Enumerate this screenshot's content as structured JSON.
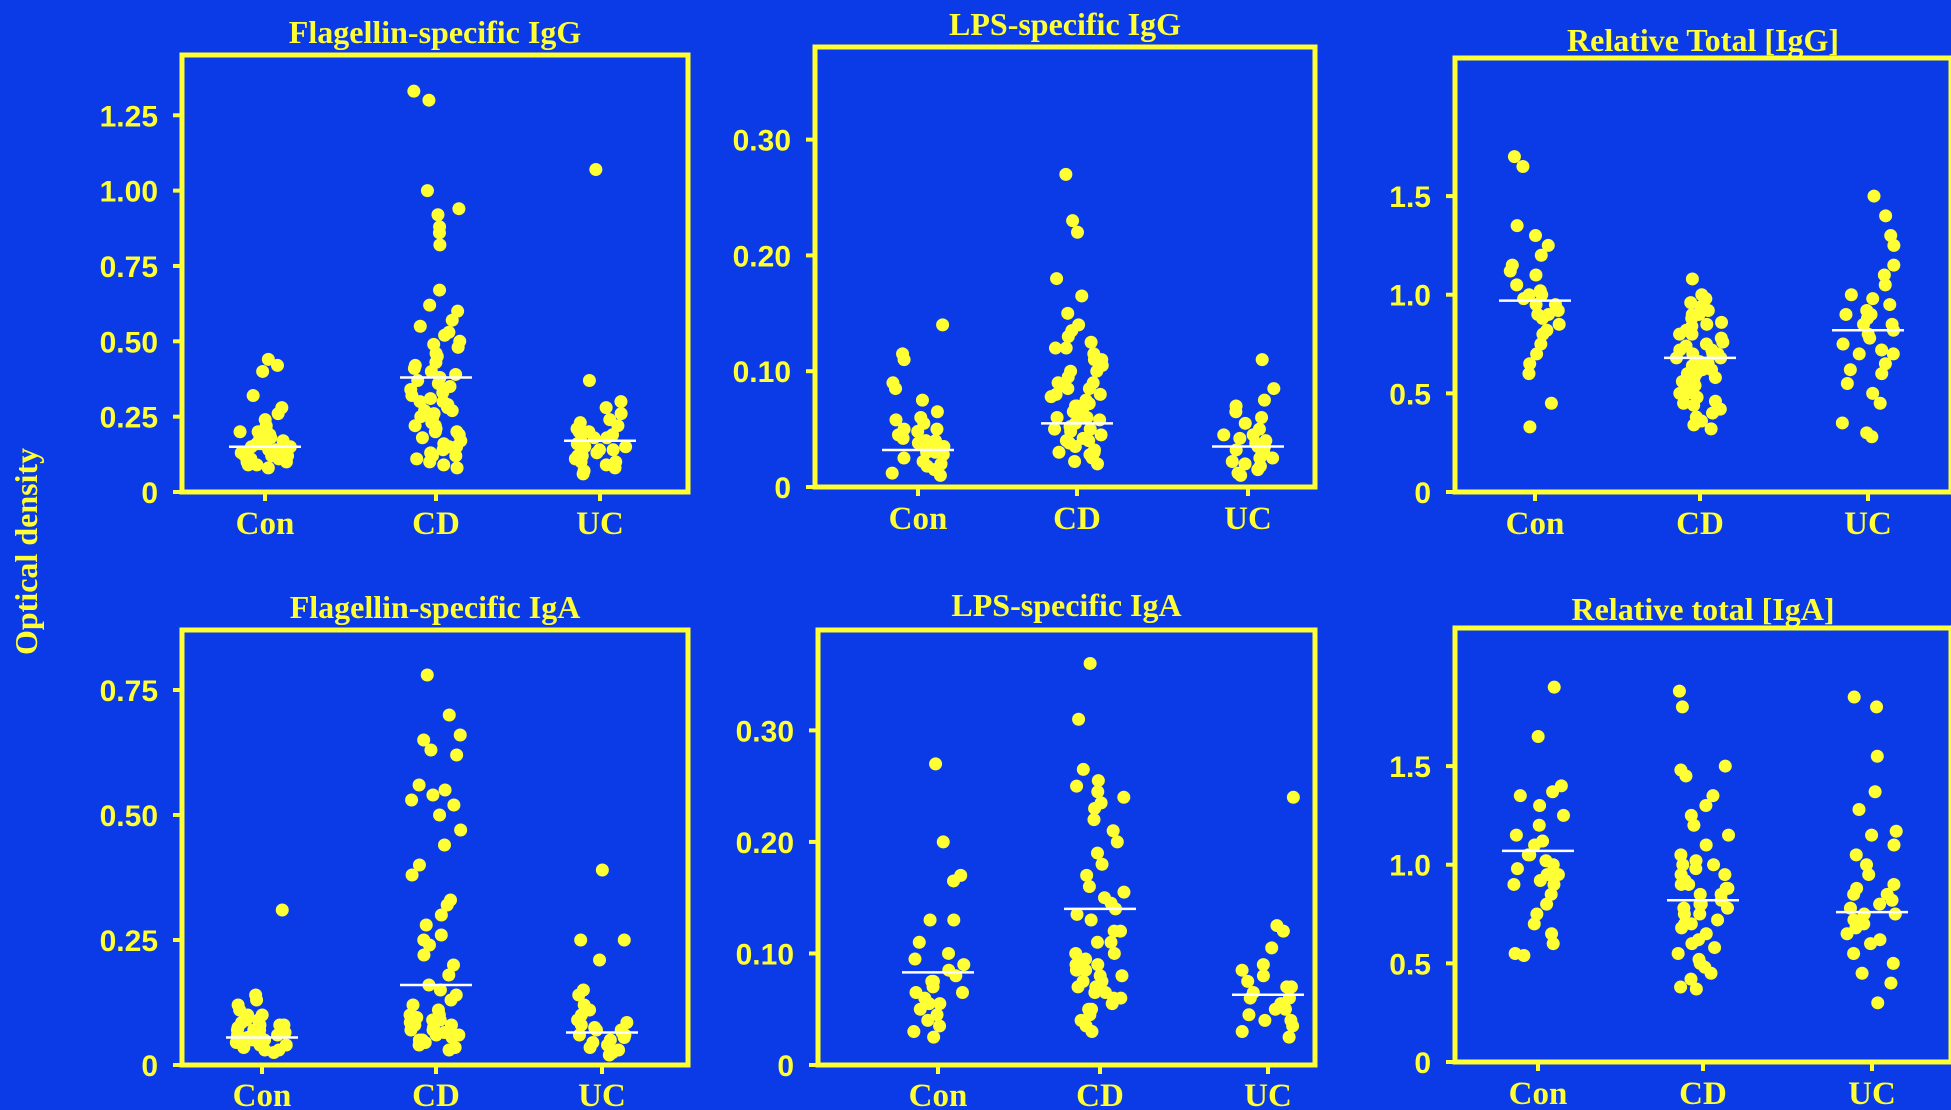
{
  "ylabel": "Optical density",
  "colors": {
    "background": "#0a3be6",
    "accent": "#ffff33",
    "median": "#ffffff"
  },
  "chart_data": [
    {
      "type": "scatter",
      "title": "Flagellin-specific IgG",
      "categories": [
        "Con",
        "CD",
        "UC"
      ],
      "yticks": [
        "0",
        "0.25",
        "0.50",
        "0.75",
        "1.00",
        "1.25"
      ],
      "ylim": [
        0,
        1.45
      ],
      "series": [
        {
          "category": "Con",
          "median": 0.15,
          "values": [
            0.42,
            0.44,
            0.4,
            0.32,
            0.28,
            0.26,
            0.24,
            0.22,
            0.21,
            0.2,
            0.19,
            0.18,
            0.18,
            0.17,
            0.16,
            0.16,
            0.15,
            0.15,
            0.14,
            0.14,
            0.13,
            0.13,
            0.12,
            0.12,
            0.11,
            0.11,
            0.1,
            0.1,
            0.09,
            0.09,
            0.08,
            0.2,
            0.17,
            0.14,
            0.12
          ]
        },
        {
          "category": "CD",
          "median": 0.38,
          "values": [
            1.33,
            1.3,
            1.0,
            0.94,
            0.92,
            0.88,
            0.86,
            0.82,
            0.67,
            0.62,
            0.6,
            0.57,
            0.55,
            0.53,
            0.52,
            0.5,
            0.49,
            0.48,
            0.46,
            0.45,
            0.43,
            0.42,
            0.41,
            0.4,
            0.39,
            0.38,
            0.37,
            0.36,
            0.35,
            0.34,
            0.33,
            0.32,
            0.31,
            0.3,
            0.29,
            0.28,
            0.27,
            0.26,
            0.25,
            0.24,
            0.23,
            0.22,
            0.21,
            0.2,
            0.19,
            0.18,
            0.17,
            0.16,
            0.15,
            0.14,
            0.13,
            0.12,
            0.11,
            0.1,
            0.09,
            0.08,
            0.3,
            0.25,
            0.2,
            0.15,
            0.12,
            0.22,
            0.27
          ]
        },
        {
          "category": "UC",
          "median": 0.17,
          "values": [
            1.07,
            0.37,
            0.3,
            0.28,
            0.26,
            0.24,
            0.23,
            0.22,
            0.21,
            0.2,
            0.19,
            0.18,
            0.17,
            0.16,
            0.15,
            0.14,
            0.13,
            0.12,
            0.11,
            0.1,
            0.09,
            0.08,
            0.07,
            0.06,
            0.2,
            0.15,
            0.12,
            0.1,
            0.18,
            0.14
          ]
        }
      ]
    },
    {
      "type": "scatter",
      "title": "LPS-specific IgG",
      "categories": [
        "Con",
        "CD",
        "UC"
      ],
      "yticks": [
        "0",
        "0.10",
        "0.20",
        "0.30"
      ],
      "ylim": [
        0,
        0.38
      ],
      "series": [
        {
          "category": "Con",
          "median": 0.032,
          "values": [
            0.14,
            0.115,
            0.11,
            0.09,
            0.085,
            0.075,
            0.065,
            0.06,
            0.058,
            0.055,
            0.05,
            0.048,
            0.045,
            0.042,
            0.04,
            0.038,
            0.035,
            0.032,
            0.03,
            0.028,
            0.025,
            0.022,
            0.02,
            0.018,
            0.015,
            0.012,
            0.01,
            0.05,
            0.04,
            0.03
          ]
        },
        {
          "category": "CD",
          "median": 0.055,
          "values": [
            0.27,
            0.23,
            0.22,
            0.18,
            0.165,
            0.15,
            0.14,
            0.135,
            0.13,
            0.125,
            0.12,
            0.115,
            0.11,
            0.105,
            0.1,
            0.095,
            0.09,
            0.088,
            0.085,
            0.08,
            0.078,
            0.075,
            0.072,
            0.07,
            0.068,
            0.065,
            0.062,
            0.06,
            0.058,
            0.055,
            0.052,
            0.05,
            0.048,
            0.045,
            0.042,
            0.04,
            0.038,
            0.035,
            0.032,
            0.03,
            0.028,
            0.025,
            0.022,
            0.02,
            0.1,
            0.09,
            0.08,
            0.07,
            0.06,
            0.05,
            0.04,
            0.03,
            0.11,
            0.12,
            0.085,
            0.065
          ]
        },
        {
          "category": "UC",
          "median": 0.035,
          "values": [
            0.11,
            0.085,
            0.075,
            0.07,
            0.065,
            0.06,
            0.055,
            0.05,
            0.045,
            0.042,
            0.04,
            0.038,
            0.035,
            0.032,
            0.03,
            0.028,
            0.025,
            0.022,
            0.02,
            0.018,
            0.015,
            0.012,
            0.01,
            0.045,
            0.035,
            0.025
          ]
        }
      ]
    },
    {
      "type": "scatter",
      "title": "Relative Total [IgG]",
      "categories": [
        "Con",
        "CD",
        "UC"
      ],
      "yticks": [
        "0",
        "0.5",
        "1.0",
        "1.5"
      ],
      "ylim": [
        0,
        2.2
      ],
      "series": [
        {
          "category": "Con",
          "median": 0.97,
          "values": [
            1.7,
            1.65,
            1.35,
            1.3,
            1.25,
            1.2,
            1.15,
            1.12,
            1.1,
            1.05,
            1.02,
            1.0,
            0.98,
            0.95,
            0.92,
            0.9,
            0.88,
            0.85,
            0.82,
            0.8,
            0.75,
            0.7,
            0.65,
            0.6,
            0.45,
            0.33,
            0.95,
            0.9,
            1.0
          ]
        },
        {
          "category": "CD",
          "median": 0.68,
          "values": [
            1.08,
            1.0,
            0.98,
            0.96,
            0.94,
            0.92,
            0.9,
            0.88,
            0.86,
            0.84,
            0.82,
            0.8,
            0.78,
            0.76,
            0.74,
            0.72,
            0.7,
            0.68,
            0.66,
            0.64,
            0.62,
            0.6,
            0.58,
            0.56,
            0.54,
            0.52,
            0.5,
            0.48,
            0.46,
            0.44,
            0.42,
            0.4,
            0.38,
            0.36,
            0.34,
            0.32,
            0.9,
            0.85,
            0.8,
            0.75,
            0.7,
            0.65,
            0.6,
            0.55,
            0.5,
            0.45,
            0.72,
            0.68,
            0.64,
            0.58,
            0.62,
            0.66,
            0.7
          ]
        },
        {
          "category": "UC",
          "median": 0.82,
          "values": [
            1.5,
            1.4,
            1.3,
            1.25,
            1.15,
            1.1,
            1.05,
            1.0,
            0.98,
            0.95,
            0.92,
            0.9,
            0.88,
            0.85,
            0.82,
            0.8,
            0.78,
            0.75,
            0.72,
            0.7,
            0.65,
            0.6,
            0.55,
            0.5,
            0.45,
            0.35,
            0.3,
            0.28,
            0.85,
            0.9,
            0.62,
            0.7
          ]
        }
      ]
    },
    {
      "type": "scatter",
      "title": "Flagellin-specific IgA",
      "categories": [
        "Con",
        "CD",
        "UC"
      ],
      "yticks": [
        "0",
        "0.25",
        "0.50",
        "0.75"
      ],
      "ylim": [
        0,
        0.87
      ],
      "series": [
        {
          "category": "Con",
          "median": 0.055,
          "values": [
            0.31,
            0.14,
            0.13,
            0.12,
            0.11,
            0.1,
            0.1,
            0.09,
            0.09,
            0.085,
            0.08,
            0.08,
            0.075,
            0.07,
            0.07,
            0.065,
            0.06,
            0.06,
            0.055,
            0.05,
            0.05,
            0.045,
            0.04,
            0.04,
            0.035,
            0.03,
            0.03,
            0.025,
            0.07,
            0.06,
            0.08,
            0.05
          ]
        },
        {
          "category": "CD",
          "median": 0.16,
          "values": [
            0.78,
            0.7,
            0.66,
            0.65,
            0.63,
            0.62,
            0.56,
            0.55,
            0.54,
            0.53,
            0.52,
            0.5,
            0.47,
            0.44,
            0.4,
            0.38,
            0.33,
            0.32,
            0.3,
            0.28,
            0.26,
            0.25,
            0.24,
            0.22,
            0.2,
            0.18,
            0.16,
            0.15,
            0.14,
            0.13,
            0.12,
            0.11,
            0.1,
            0.095,
            0.09,
            0.085,
            0.08,
            0.075,
            0.07,
            0.065,
            0.06,
            0.055,
            0.05,
            0.045,
            0.04,
            0.035,
            0.03,
            0.1,
            0.08,
            0.06,
            0.07,
            0.09,
            0.05
          ]
        },
        {
          "category": "UC",
          "median": 0.065,
          "values": [
            0.39,
            0.25,
            0.25,
            0.21,
            0.15,
            0.14,
            0.12,
            0.11,
            0.1,
            0.09,
            0.085,
            0.08,
            0.075,
            0.07,
            0.065,
            0.06,
            0.055,
            0.05,
            0.045,
            0.04,
            0.035,
            0.03,
            0.025,
            0.02,
            0.06,
            0.07
          ]
        }
      ]
    },
    {
      "type": "scatter",
      "title": "LPS-specific IgA",
      "categories": [
        "Con",
        "CD",
        "UC"
      ],
      "yticks": [
        "0",
        "0.10",
        "0.20",
        "0.30"
      ],
      "ylim": [
        0,
        0.39
      ],
      "series": [
        {
          "category": "Con",
          "median": 0.083,
          "values": [
            0.27,
            0.2,
            0.17,
            0.165,
            0.13,
            0.13,
            0.11,
            0.1,
            0.095,
            0.09,
            0.085,
            0.08,
            0.075,
            0.07,
            0.065,
            0.06,
            0.055,
            0.05,
            0.045,
            0.04,
            0.035,
            0.03,
            0.025,
            0.075,
            0.065,
            0.055
          ]
        },
        {
          "category": "CD",
          "median": 0.14,
          "values": [
            0.36,
            0.31,
            0.265,
            0.255,
            0.25,
            0.245,
            0.24,
            0.235,
            0.23,
            0.22,
            0.21,
            0.2,
            0.19,
            0.18,
            0.17,
            0.16,
            0.155,
            0.15,
            0.145,
            0.14,
            0.135,
            0.13,
            0.12,
            0.11,
            0.1,
            0.095,
            0.09,
            0.085,
            0.08,
            0.075,
            0.07,
            0.065,
            0.06,
            0.055,
            0.05,
            0.045,
            0.04,
            0.035,
            0.03,
            0.1,
            0.09,
            0.08,
            0.07,
            0.06,
            0.05,
            0.12,
            0.11,
            0.065,
            0.075,
            0.085
          ]
        },
        {
          "category": "UC",
          "median": 0.063,
          "values": [
            0.24,
            0.125,
            0.12,
            0.105,
            0.09,
            0.085,
            0.08,
            0.075,
            0.07,
            0.065,
            0.06,
            0.055,
            0.05,
            0.045,
            0.04,
            0.035,
            0.03,
            0.025,
            0.06,
            0.05,
            0.04,
            0.07
          ]
        }
      ]
    },
    {
      "type": "scatter",
      "title": "Relative total [IgA]",
      "categories": [
        "Con",
        "CD",
        "UC"
      ],
      "yticks": [
        "0",
        "0.5",
        "1.0",
        "1.5"
      ],
      "ylim": [
        0,
        2.2
      ],
      "series": [
        {
          "category": "Con",
          "median": 1.07,
          "values": [
            1.9,
            1.65,
            1.4,
            1.37,
            1.35,
            1.3,
            1.25,
            1.2,
            1.15,
            1.12,
            1.1,
            1.05,
            1.02,
            1.0,
            0.98,
            0.95,
            0.92,
            0.9,
            0.85,
            0.8,
            0.75,
            0.7,
            0.65,
            0.6,
            0.55,
            0.54,
            1.05,
            0.95,
            0.9
          ]
        },
        {
          "category": "CD",
          "median": 0.82,
          "values": [
            1.88,
            1.8,
            1.5,
            1.48,
            1.45,
            1.35,
            1.3,
            1.25,
            1.2,
            1.15,
            1.1,
            1.05,
            1.02,
            1.0,
            0.98,
            0.95,
            0.92,
            0.9,
            0.88,
            0.85,
            0.82,
            0.8,
            0.78,
            0.75,
            0.72,
            0.7,
            0.68,
            0.65,
            0.62,
            0.6,
            0.58,
            0.55,
            0.52,
            0.5,
            0.48,
            0.45,
            0.42,
            0.38,
            0.37,
            0.9,
            0.85,
            0.8,
            0.75,
            0.7,
            0.95,
            1.0,
            0.88,
            0.78
          ]
        },
        {
          "category": "UC",
          "median": 0.76,
          "values": [
            1.85,
            1.8,
            1.55,
            1.37,
            1.28,
            1.17,
            1.15,
            1.1,
            1.05,
            1.0,
            0.95,
            0.9,
            0.88,
            0.85,
            0.82,
            0.8,
            0.78,
            0.75,
            0.72,
            0.7,
            0.68,
            0.65,
            0.62,
            0.6,
            0.55,
            0.5,
            0.45,
            0.4,
            0.3,
            0.85,
            0.75,
            0.7
          ]
        }
      ]
    }
  ]
}
